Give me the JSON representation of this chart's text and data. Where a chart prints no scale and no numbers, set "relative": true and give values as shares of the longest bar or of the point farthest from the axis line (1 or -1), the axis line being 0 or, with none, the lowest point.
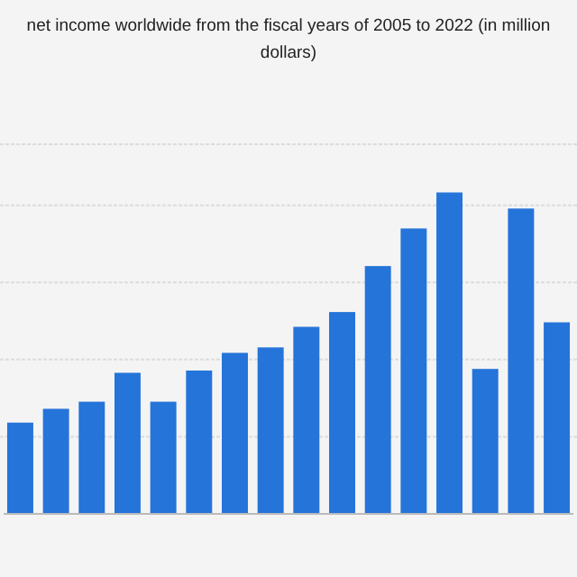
{
  "chart_data": {
    "type": "bar",
    "title": "net income worldwide from the fiscal years of 2005 to 2022 (in million dollars)",
    "relative": true,
    "grid": true,
    "color": "#2574d9",
    "categories": [
      null,
      null,
      null,
      null,
      null,
      null,
      null,
      null,
      null,
      null,
      null,
      null,
      null,
      null,
      null,
      null
    ],
    "values": [
      0.284,
      0.327,
      0.349,
      0.439,
      0.349,
      0.446,
      0.501,
      0.518,
      0.582,
      0.628,
      0.771,
      0.888,
      1,
      0.451,
      0.95,
      0.596
    ]
  }
}
